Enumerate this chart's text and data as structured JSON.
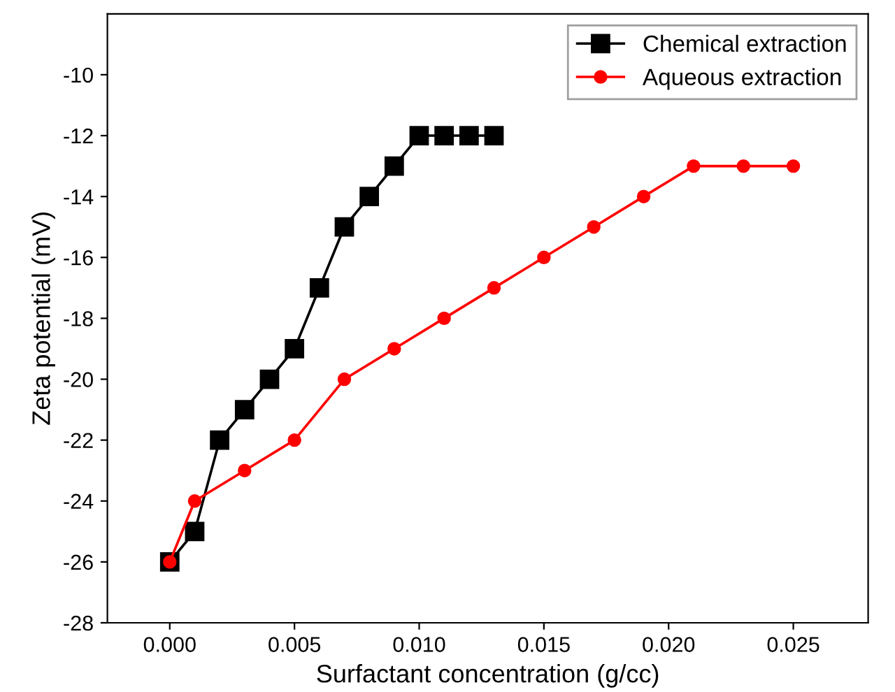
{
  "chart_data": {
    "type": "line",
    "xlabel": "Surfactant concentration (g/cc)",
    "ylabel": "Zeta potential (mV)",
    "xlim": [
      -0.0025,
      0.028
    ],
    "xticks": [
      {
        "value": 0,
        "label": "0.000"
      },
      {
        "value": 0.005,
        "label": "0.005"
      },
      {
        "value": 0.01,
        "label": "0.010"
      },
      {
        "value": 0.015,
        "label": "0.015"
      },
      {
        "value": 0.02,
        "label": "0.020"
      },
      {
        "value": 0.025,
        "label": "0.025"
      }
    ],
    "ylim": [
      -28,
      -8
    ],
    "yticks": [
      -28,
      -26,
      -24,
      -22,
      -20,
      -18,
      -16,
      -14,
      -12,
      -10
    ],
    "grid": false,
    "legend": "top right",
    "series": [
      {
        "name": "Chemical extraction",
        "color": "#000000",
        "marker": "square",
        "x": [
          0,
          0.001,
          0.002,
          0.003,
          0.004,
          0.005,
          0.006,
          0.007,
          0.008,
          0.009,
          0.01,
          0.011,
          0.012,
          0.013
        ],
        "values": [
          -26,
          -25,
          -22,
          -21,
          -20,
          -19,
          -17,
          -15,
          -14,
          -13,
          -12,
          -12,
          -12,
          -12
        ]
      },
      {
        "name": "Aqueous extraction",
        "color": "#ff0000",
        "marker": "circle",
        "x": [
          0,
          0.001,
          0.003,
          0.005,
          0.007,
          0.009,
          0.011,
          0.013,
          0.015,
          0.017,
          0.019,
          0.021,
          0.023,
          0.025
        ],
        "values": [
          -26,
          -24,
          -23,
          -22,
          -20,
          -19,
          -18,
          -17,
          -16,
          -15,
          -14,
          -13,
          -13,
          -13
        ]
      }
    ]
  }
}
